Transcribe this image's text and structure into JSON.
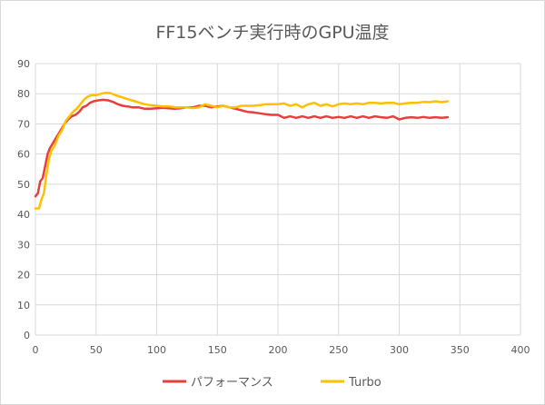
{
  "chart_data": {
    "type": "line",
    "title": "FF15ベンチ実行時のGPU温度",
    "xlabel": "",
    "ylabel": "",
    "xlim": [
      0,
      400
    ],
    "ylim": [
      0,
      90
    ],
    "xticks": [
      0,
      50,
      100,
      150,
      200,
      250,
      300,
      350,
      400
    ],
    "yticks": [
      0,
      10,
      20,
      30,
      40,
      50,
      60,
      70,
      80,
      90
    ],
    "grid": true,
    "legend_position": "bottom",
    "series": [
      {
        "name": "パフォーマンス",
        "color": "#e83e3e",
        "points": [
          [
            0,
            46
          ],
          [
            2,
            47
          ],
          [
            4,
            51
          ],
          [
            6,
            52
          ],
          [
            8,
            56
          ],
          [
            10,
            60
          ],
          [
            12,
            62
          ],
          [
            15,
            64
          ],
          [
            18,
            66
          ],
          [
            21,
            68
          ],
          [
            24,
            70
          ],
          [
            27,
            71.5
          ],
          [
            30,
            72.5
          ],
          [
            33,
            73
          ],
          [
            36,
            74
          ],
          [
            39,
            75.5
          ],
          [
            42,
            76
          ],
          [
            45,
            77
          ],
          [
            48,
            77.5
          ],
          [
            52,
            77.8
          ],
          [
            56,
            78
          ],
          [
            60,
            77.8
          ],
          [
            64,
            77.3
          ],
          [
            68,
            76.5
          ],
          [
            72,
            76
          ],
          [
            76,
            75.8
          ],
          [
            80,
            75.5
          ],
          [
            85,
            75.5
          ],
          [
            90,
            75
          ],
          [
            95,
            75
          ],
          [
            100,
            75.2
          ],
          [
            105,
            75.3
          ],
          [
            110,
            75.2
          ],
          [
            115,
            75
          ],
          [
            120,
            75.2
          ],
          [
            125,
            75.5
          ],
          [
            130,
            75.5
          ],
          [
            135,
            76
          ],
          [
            140,
            76
          ],
          [
            145,
            75.5
          ],
          [
            150,
            75.8
          ],
          [
            155,
            76
          ],
          [
            160,
            75.5
          ],
          [
            165,
            75
          ],
          [
            170,
            74.5
          ],
          [
            175,
            74
          ],
          [
            180,
            73.8
          ],
          [
            185,
            73.5
          ],
          [
            190,
            73.2
          ],
          [
            195,
            73
          ],
          [
            200,
            73
          ],
          [
            205,
            72
          ],
          [
            210,
            72.5
          ],
          [
            215,
            72
          ],
          [
            220,
            72.5
          ],
          [
            225,
            72
          ],
          [
            230,
            72.5
          ],
          [
            235,
            72
          ],
          [
            240,
            72.5
          ],
          [
            245,
            72
          ],
          [
            250,
            72.3
          ],
          [
            255,
            72
          ],
          [
            260,
            72.5
          ],
          [
            265,
            72
          ],
          [
            270,
            72.5
          ],
          [
            275,
            72
          ],
          [
            280,
            72.5
          ],
          [
            285,
            72.2
          ],
          [
            290,
            72
          ],
          [
            295,
            72.5
          ],
          [
            300,
            71.5
          ],
          [
            305,
            72
          ],
          [
            310,
            72.2
          ],
          [
            315,
            72
          ],
          [
            320,
            72.3
          ],
          [
            325,
            72
          ],
          [
            330,
            72.2
          ],
          [
            335,
            72
          ],
          [
            340,
            72.2
          ]
        ]
      },
      {
        "name": "Turbo",
        "color": "#ffc000",
        "points": [
          [
            0,
            42
          ],
          [
            3,
            42
          ],
          [
            5,
            45
          ],
          [
            7,
            47
          ],
          [
            9,
            53
          ],
          [
            11,
            58
          ],
          [
            13,
            61
          ],
          [
            16,
            63
          ],
          [
            19,
            66
          ],
          [
            22,
            68
          ],
          [
            25,
            71
          ],
          [
            28,
            72.5
          ],
          [
            31,
            74
          ],
          [
            34,
            75
          ],
          [
            37,
            76.5
          ],
          [
            40,
            78
          ],
          [
            43,
            79
          ],
          [
            46,
            79.5
          ],
          [
            50,
            79.5
          ],
          [
            54,
            80
          ],
          [
            58,
            80.3
          ],
          [
            62,
            80.2
          ],
          [
            66,
            79.5
          ],
          [
            70,
            79
          ],
          [
            74,
            78.5
          ],
          [
            78,
            78
          ],
          [
            82,
            77.5
          ],
          [
            86,
            77
          ],
          [
            90,
            76.5
          ],
          [
            95,
            76.2
          ],
          [
            100,
            76
          ],
          [
            105,
            75.8
          ],
          [
            110,
            75.8
          ],
          [
            115,
            75.5
          ],
          [
            120,
            75.5
          ],
          [
            125,
            75.5
          ],
          [
            130,
            75.2
          ],
          [
            135,
            75.5
          ],
          [
            140,
            76.5
          ],
          [
            145,
            76
          ],
          [
            150,
            75.5
          ],
          [
            155,
            76
          ],
          [
            160,
            75.5
          ],
          [
            165,
            75.5
          ],
          [
            170,
            76
          ],
          [
            175,
            76
          ],
          [
            180,
            76
          ],
          [
            185,
            76.2
          ],
          [
            190,
            76.5
          ],
          [
            195,
            76.5
          ],
          [
            200,
            76.5
          ],
          [
            205,
            76.8
          ],
          [
            210,
            76
          ],
          [
            215,
            76.5
          ],
          [
            220,
            75.5
          ],
          [
            225,
            76.5
          ],
          [
            230,
            77
          ],
          [
            235,
            76
          ],
          [
            240,
            76.5
          ],
          [
            245,
            75.8
          ],
          [
            250,
            76.5
          ],
          [
            255,
            76.8
          ],
          [
            260,
            76.5
          ],
          [
            265,
            76.8
          ],
          [
            270,
            76.5
          ],
          [
            275,
            77
          ],
          [
            280,
            77
          ],
          [
            285,
            76.8
          ],
          [
            290,
            77
          ],
          [
            295,
            77
          ],
          [
            300,
            76.5
          ],
          [
            305,
            76.8
          ],
          [
            310,
            77
          ],
          [
            315,
            77
          ],
          [
            320,
            77.3
          ],
          [
            325,
            77.2
          ],
          [
            330,
            77.5
          ],
          [
            335,
            77.2
          ],
          [
            340,
            77.5
          ]
        ]
      }
    ]
  }
}
